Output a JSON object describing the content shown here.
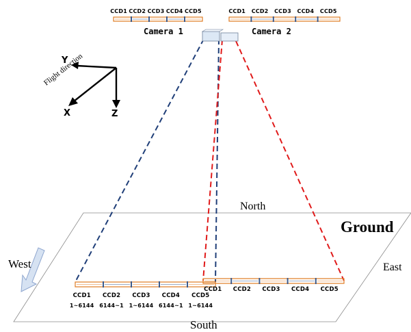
{
  "camera1": {
    "label": "Camera 1",
    "ccds": [
      "CCD1",
      "CCD2",
      "CCD3",
      "CCD4",
      "CCD5"
    ]
  },
  "camera2": {
    "label": "Camera 2",
    "ccds": [
      "CCD1",
      "CCD2",
      "CCD3",
      "CCD4",
      "CCD5"
    ]
  },
  "axes": {
    "x": "X",
    "y": "Y",
    "z": "Z",
    "flight_direction": "Flight direction"
  },
  "ground": {
    "label": "Ground",
    "north": "North",
    "south": "South",
    "east": "East",
    "west": "West"
  },
  "ground_ccds_camera1": [
    "CCD1",
    "CCD2",
    "CCD3",
    "CCD4",
    "CCD5"
  ],
  "ground_ccds_camera2": [
    "CCD1",
    "CCD2",
    "CCD3",
    "CCD4",
    "CCD5"
  ],
  "pixel_ranges": [
    "1~6144",
    "6144~1",
    "1~6144",
    "6144~1",
    "1~6144"
  ],
  "colors": {
    "ccd_outline": "#e07b22",
    "ccd_separator": "#3a5a8c",
    "camera1_rays": "#1f3e78",
    "camera2_rays": "#e01a1a",
    "camera_body": "#dce8f5",
    "arrow_fill": "#d6e2f2",
    "arrow_stroke": "#8ea6cf"
  }
}
